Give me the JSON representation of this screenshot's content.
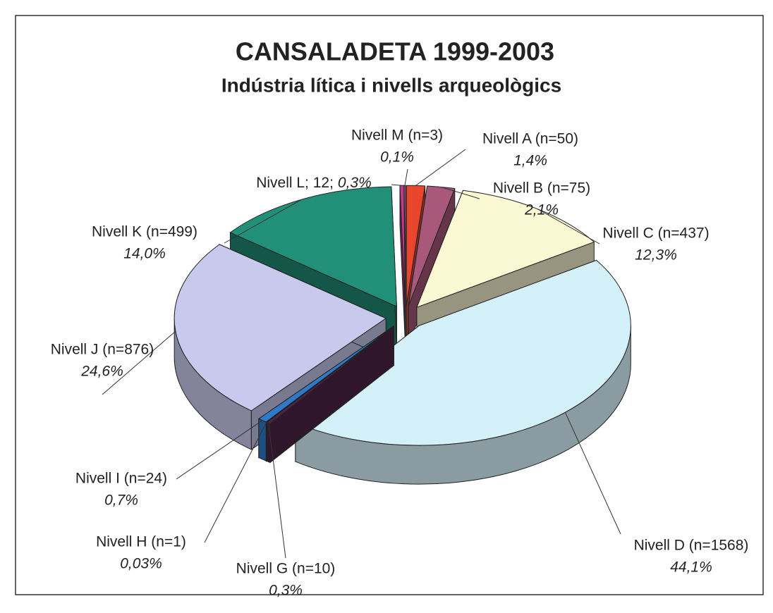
{
  "chart_data": {
    "type": "pie3d",
    "title": "CANSALADETA 1999-2003",
    "subtitle": "Indústria lítica i nivells arqueològics",
    "categories": [
      "Nivell A (n=50)",
      "Nivell B (n=75)",
      "Nivell C (n=437)",
      "Nivell D (n=1568)",
      "Nivell G (n=10)",
      "Nivell H (n=1)",
      "Nivell I (n=24)",
      "Nivell J (n=876)",
      "Nivell K (n=499)",
      "Nivell L; 12;",
      "Nivell M (n=3)"
    ],
    "values": [
      1.4,
      2.1,
      12.3,
      44.1,
      0.3,
      0.03,
      0.7,
      24.6,
      14.0,
      0.3,
      0.1
    ],
    "value_labels": [
      "1,4%",
      "2,1%",
      "12,3%",
      "44,1%",
      "0,3%",
      "0,03%",
      "0,7%",
      "24,6%",
      "14,0%",
      "0,3%",
      "0,1%"
    ],
    "colors": [
      "#e8452c",
      "#a8587a",
      "#fbf8d4",
      "#d4f0f8",
      "#4e2448",
      "#2a6a8a",
      "#2f7ac8",
      "#c9c9ee",
      "#228f78",
      "#c2388e",
      "#e07ab0"
    ]
  }
}
